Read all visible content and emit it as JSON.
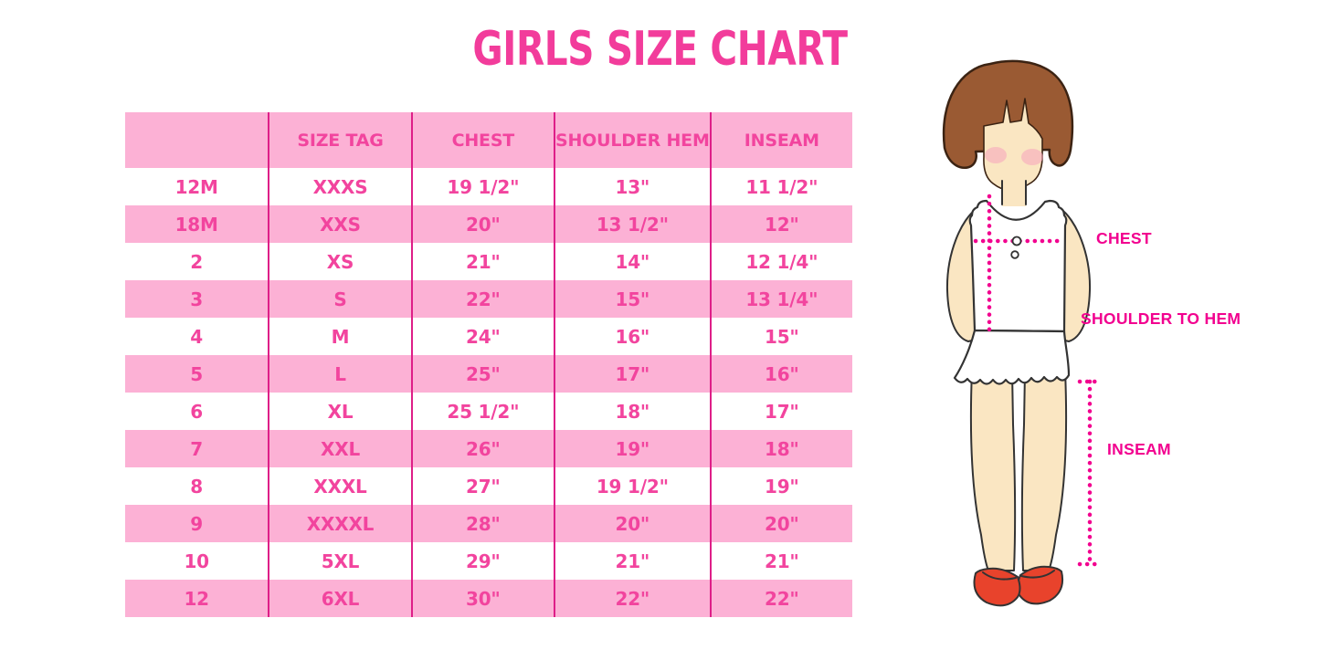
{
  "chart_data": {
    "type": "table",
    "title": "GIRLS SIZE CHART",
    "columns": [
      "",
      "SIZE TAG",
      "CHEST",
      "SHOULDER HEM",
      "INSEAM"
    ],
    "rows": [
      [
        "12M",
        "XXXS",
        "19 1/2\"",
        "13\"",
        "11 1/2\""
      ],
      [
        "18M",
        "XXS",
        "20\"",
        "13 1/2\"",
        "12\""
      ],
      [
        "2",
        "XS",
        "21\"",
        "14\"",
        "12 1/4\""
      ],
      [
        "3",
        "S",
        "22\"",
        "15\"",
        "13 1/4\""
      ],
      [
        "4",
        "M",
        "24\"",
        "16\"",
        "15\""
      ],
      [
        "5",
        "L",
        "25\"",
        "17\"",
        "16\""
      ],
      [
        "6",
        "XL",
        "25 1/2\"",
        "18\"",
        "17\""
      ],
      [
        "7",
        "XXL",
        "26\"",
        "19\"",
        "18\""
      ],
      [
        "8",
        "XXXL",
        "27\"",
        "19 1/2\"",
        "19\""
      ],
      [
        "9",
        "XXXXL",
        "28\"",
        "20\"",
        "20\""
      ],
      [
        "10",
        "5XL",
        "29\"",
        "21\"",
        "21\""
      ],
      [
        "12",
        "6XL",
        "30\"",
        "22\"",
        "22\""
      ]
    ],
    "layout": {
      "header_background": "pink",
      "row_striping": "white/pink alternating starting white",
      "column_dividers": "magenta vertical lines"
    }
  },
  "figure": {
    "labels": {
      "chest": "CHEST",
      "shoulder_to_hem": "SHOULDER TO HEM",
      "inseam": "INSEAM"
    }
  },
  "colors": {
    "background": "#FFFFFF",
    "title_pink": "#F23C9B",
    "table_text_pink": "#F2449E",
    "row_pink": "#FCB1D5",
    "divider_magenta": "#DE1E88",
    "label_magenta": "#F2008F",
    "hair_brown": "#9A5A33",
    "hair_outline": "#3B2313",
    "skin": "#FAE6C2",
    "outline_dark": "#333333",
    "shoe_red": "#E8432C",
    "blush_pink": "#F6A9BD"
  }
}
